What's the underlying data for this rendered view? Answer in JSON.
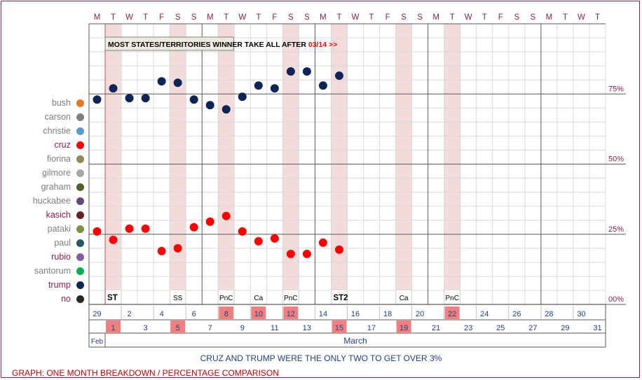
{
  "banner": {
    "text": "MOST STATES/TERRITORIES WINNER TAKE ALL AFTER",
    "date": "03/14 >>"
  },
  "caption": "CRUZ AND TRUMP WERE THE ONLY TWO TO GET OVER 3%",
  "footer": "GRAPH: ONE MONTH BREAKDOWN / PERCENTAGE COMPARISON",
  "legend": [
    {
      "name": "bush",
      "color": "#e87722",
      "active": false
    },
    {
      "name": "carson",
      "color": "#808080",
      "active": false
    },
    {
      "name": "christie",
      "color": "#5b9bd5",
      "active": false
    },
    {
      "name": "cruz",
      "color": "#ff0000",
      "active": true
    },
    {
      "name": "fiorina",
      "color": "#938953",
      "active": false
    },
    {
      "name": "gilmore",
      "color": "#a6a6a6",
      "active": false
    },
    {
      "name": "graham",
      "color": "#4f6228",
      "active": false
    },
    {
      "name": "huckabee",
      "color": "#604a7b",
      "active": false
    },
    {
      "name": "kasich",
      "color": "#632523",
      "active": true
    },
    {
      "name": "pataki",
      "color": "#77933c",
      "active": false
    },
    {
      "name": "paul",
      "color": "#215967",
      "active": false
    },
    {
      "name": "rubio",
      "color": "#7f5fa0",
      "active": true
    },
    {
      "name": "santorum",
      "color": "#00b050",
      "active": false
    },
    {
      "name": "trump",
      "color": "#0d2456",
      "active": true
    },
    {
      "name": "no",
      "color": "#262626",
      "active": true
    }
  ],
  "chart_data": {
    "type": "scatter",
    "weekday_letters": [
      "M",
      "T",
      "W",
      "T",
      "F",
      "S",
      "S",
      "M",
      "T",
      "W",
      "T",
      "F",
      "S",
      "S",
      "M",
      "T",
      "W",
      "T",
      "F",
      "S",
      "S",
      "M",
      "T",
      "W",
      "T",
      "F",
      "S",
      "S",
      "M",
      "T",
      "W",
      "T"
    ],
    "dates": [
      "29",
      "1",
      "2",
      "3",
      "4",
      "5",
      "6",
      "7",
      "8",
      "9",
      "10",
      "11",
      "12",
      "13",
      "14",
      "15",
      "16",
      "17",
      "18",
      "19",
      "20",
      "21",
      "22",
      "23",
      "24",
      "25",
      "26",
      "27",
      "28",
      "29",
      "30",
      "31"
    ],
    "highlighted_dates": [
      "1",
      "5",
      "8",
      "10",
      "12",
      "15",
      "19",
      "22"
    ],
    "month_labels": [
      "Feb",
      "March"
    ],
    "y_ticks": [
      "75%",
      "50%",
      "25%",
      "00%"
    ],
    "ylim": [
      0,
      100
    ],
    "shaded_columns": [
      1,
      5,
      8,
      12,
      15,
      19,
      22
    ],
    "event_labels": [
      {
        "col": 1,
        "text": "ST",
        "bold": true
      },
      {
        "col": 5,
        "text": "SS",
        "bold": false
      },
      {
        "col": 8,
        "text": "PnC",
        "bold": false
      },
      {
        "col": 10,
        "text": "Ca",
        "bold": false
      },
      {
        "col": 12,
        "text": "PnC",
        "bold": false
      },
      {
        "col": 15,
        "text": "ST2",
        "bold": true
      },
      {
        "col": 19,
        "text": "Ca",
        "bold": false
      },
      {
        "col": 22,
        "text": "PnC",
        "bold": false
      }
    ],
    "series": [
      {
        "name": "trump",
        "color": "#0d2456",
        "values": [
          73,
          77,
          73.5,
          73.5,
          79.5,
          79,
          73,
          71,
          69.5,
          74,
          78,
          77,
          83,
          83,
          78,
          81.5
        ]
      },
      {
        "name": "cruz",
        "color": "#ff0000",
        "values": [
          26,
          23,
          27,
          27,
          19,
          20,
          27.5,
          29.5,
          31.5,
          26,
          22.5,
          23.5,
          18,
          18,
          22,
          19.5
        ]
      }
    ]
  }
}
